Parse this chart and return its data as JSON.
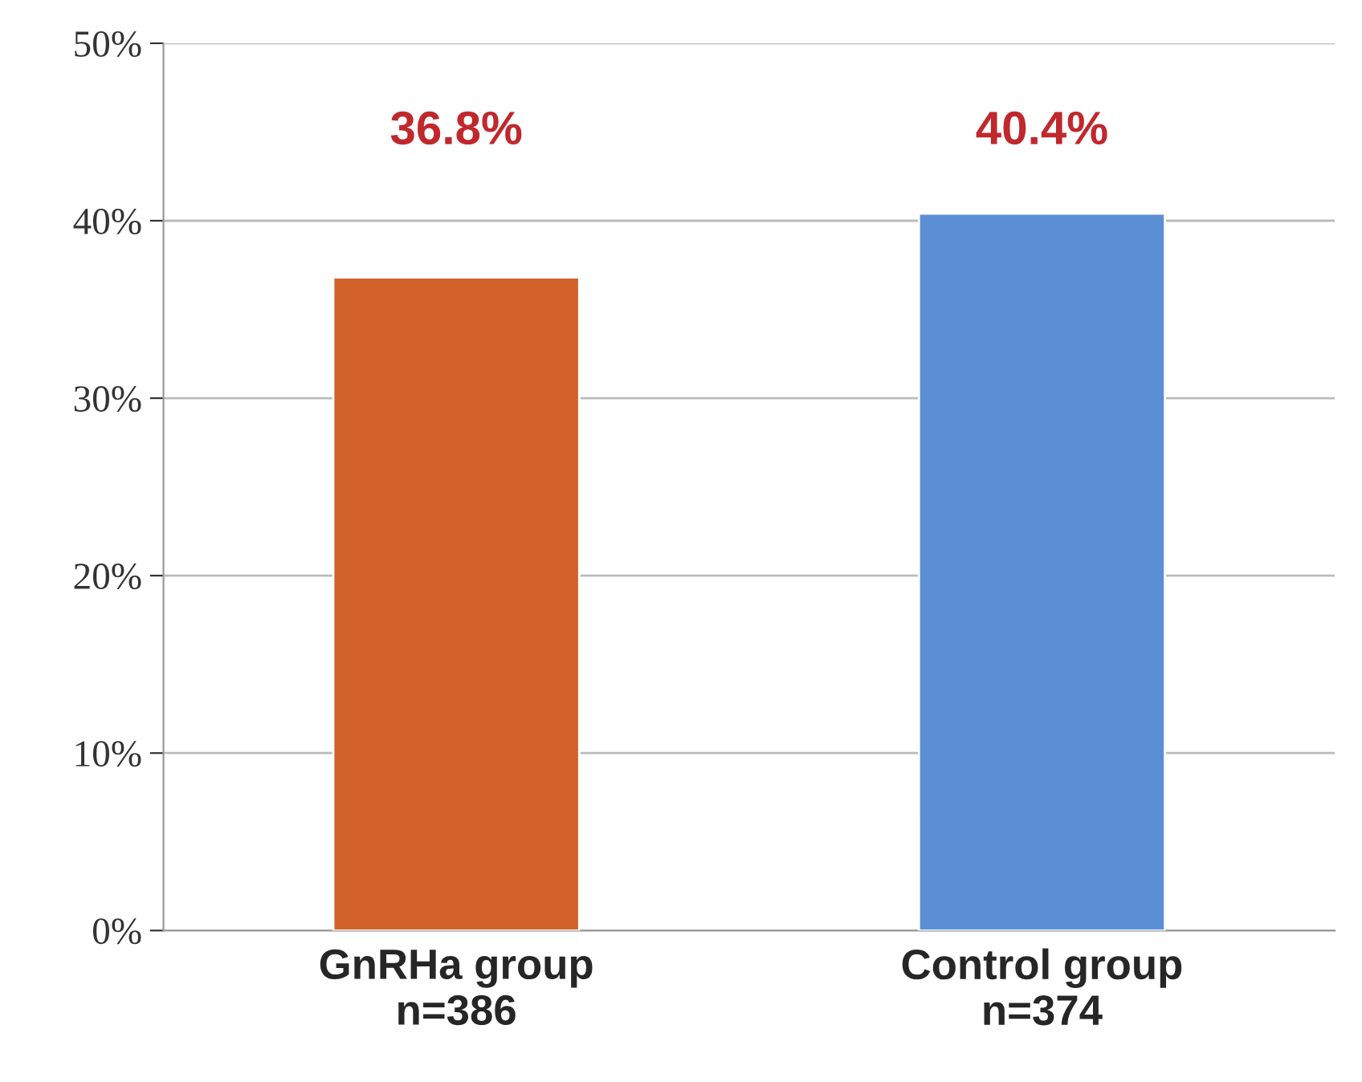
{
  "chart_data": {
    "type": "bar",
    "categories": [
      "GnRHa group\nn=386",
      "Control group\nn=374"
    ],
    "values": [
      36.8,
      40.4
    ],
    "colors": [
      "#d2622a",
      "#5b8fd4"
    ],
    "value_labels": [
      "36.8%",
      "40.4%"
    ],
    "ylim": [
      0,
      50
    ],
    "yticks": [
      {
        "value": 0,
        "label": "0%"
      },
      {
        "value": 10,
        "label": "10%"
      },
      {
        "value": 20,
        "label": "20%"
      },
      {
        "value": 30,
        "label": "30%"
      },
      {
        "value": 40,
        "label": "40%"
      },
      {
        "value": 50,
        "label": "50%"
      }
    ],
    "grid": "y",
    "legend": false
  }
}
